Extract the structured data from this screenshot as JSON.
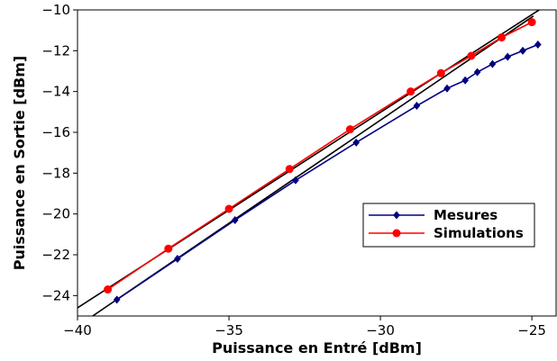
{
  "chart_data": {
    "type": "line",
    "xlabel": "Puissance en Entré [dBm]",
    "ylabel": "Puissance en Sortie [dBm]",
    "xlim": [
      -40,
      -24.2
    ],
    "ylim": [
      -25,
      -10
    ],
    "xticks": [
      -40,
      -35,
      -30,
      -25
    ],
    "yticks": [
      -24,
      -22,
      -20,
      -18,
      -16,
      -14,
      -12,
      -10
    ],
    "xtick_labels": [
      "−40",
      "−35",
      "−30",
      "−25"
    ],
    "ytick_labels": [
      "−24",
      "−22",
      "−20",
      "−18",
      "−16",
      "−14",
      "−12",
      "−10"
    ],
    "grid": false,
    "legend_position": "center-right",
    "series": [
      {
        "name": "Mesures",
        "color": "#000080",
        "marker": "diamond",
        "x": [
          -38.7,
          -36.7,
          -34.8,
          -32.8,
          -30.8,
          -28.8,
          -27.8,
          -27.2,
          -26.8,
          -26.3,
          -25.8,
          -25.3,
          -24.8
        ],
        "y": [
          -24.2,
          -22.2,
          -20.3,
          -18.35,
          -16.5,
          -14.7,
          -13.85,
          -13.45,
          -13.05,
          -12.65,
          -12.3,
          -12.0,
          -11.7
        ]
      },
      {
        "name": "Simulations",
        "color": "#ff0000",
        "marker": "circle",
        "x": [
          -39.0,
          -37.0,
          -35.0,
          -33.0,
          -31.0,
          -29.0,
          -28.0,
          -27.0,
          -26.0,
          -25.0
        ],
        "y": [
          -23.7,
          -21.7,
          -19.75,
          -17.8,
          -15.85,
          -14.0,
          -13.1,
          -12.25,
          -11.35,
          -10.6
        ]
      }
    ],
    "reference_lines": [
      {
        "color": "#000000",
        "x": [
          -40.0,
          -24.55
        ],
        "y": [
          -24.6,
          -9.8
        ]
      },
      {
        "color": "#000000",
        "x": [
          -39.5,
          -24.95
        ],
        "y": [
          -25.0,
          -10.3
        ]
      }
    ]
  }
}
